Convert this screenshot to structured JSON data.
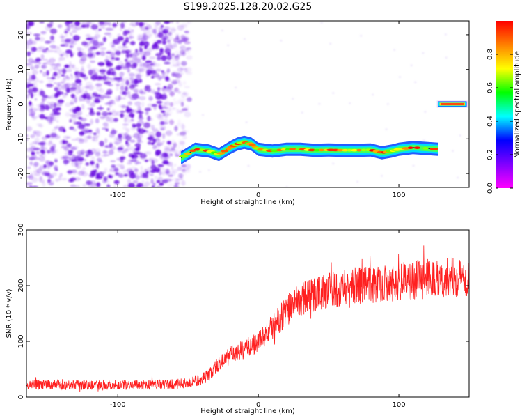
{
  "title": "S199.2025.128.20.02.G25",
  "chart_data": [
    {
      "id": "spectrogram",
      "type": "heatmap",
      "xlabel": "Height of straight line (km)",
      "ylabel": "Frequency (Hz)",
      "xlim": [
        -165,
        150
      ],
      "ylim": [
        -24,
        24
      ],
      "x_ticks": [
        -100,
        0,
        100
      ],
      "y_ticks": [
        -20,
        -10,
        0,
        10,
        20
      ],
      "colorbar": {
        "label": "Normalized spectral amplitude",
        "range": [
          0,
          1
        ],
        "ticks": [
          0.0,
          0.2,
          0.4,
          0.6,
          0.8
        ],
        "colormap": [
          "#ff00ff",
          "#8000ff",
          "#0000ff",
          "#00ffff",
          "#00ff00",
          "#ffff00",
          "#ff8000",
          "#ff0000"
        ]
      },
      "noise_region": {
        "x": [
          -165,
          -55
        ],
        "color": "#7a1fe6"
      },
      "signal_track": {
        "x": [
          -55,
          -45,
          -35,
          -28,
          -20,
          -15,
          -10,
          -5,
          0,
          10,
          20,
          30,
          40,
          50,
          60,
          70,
          80,
          88,
          95,
          100,
          110,
          128
        ],
        "y": [
          -15.5,
          -13,
          -13.5,
          -14.5,
          -12.5,
          -11.5,
          -11,
          -11.5,
          -13,
          -13.5,
          -13,
          -13,
          -13.3,
          -13.2,
          -13.3,
          -13.3,
          -13.2,
          -14,
          -13.5,
          -13,
          -12.5,
          -13
        ]
      },
      "carrier_track": {
        "x": [
          128,
          148
        ],
        "y": [
          0,
          0
        ]
      }
    },
    {
      "id": "snr",
      "type": "line",
      "xlabel": "Height of straight line (km)",
      "ylabel": "SNR (10 * v/v)",
      "xlim": [
        -165,
        150
      ],
      "ylim": [
        0,
        300
      ],
      "x_ticks": [
        -100,
        0,
        100
      ],
      "y_ticks": [
        0,
        100,
        200,
        300
      ],
      "series": [
        {
          "color": "#ff2020",
          "x": [
            -165,
            -140,
            -120,
            -100,
            -80,
            -60,
            -50,
            -42,
            -35,
            -30,
            -20,
            -10,
            0,
            10,
            20,
            30,
            40,
            50,
            60,
            70,
            80,
            90,
            100,
            110,
            120,
            130,
            140,
            150
          ],
          "y": [
            22,
            22,
            22,
            22,
            22,
            23,
            25,
            30,
            40,
            55,
            75,
            85,
            100,
            125,
            155,
            175,
            185,
            192,
            197,
            200,
            202,
            205,
            207,
            210,
            212,
            214,
            215,
            215
          ]
        }
      ]
    }
  ]
}
